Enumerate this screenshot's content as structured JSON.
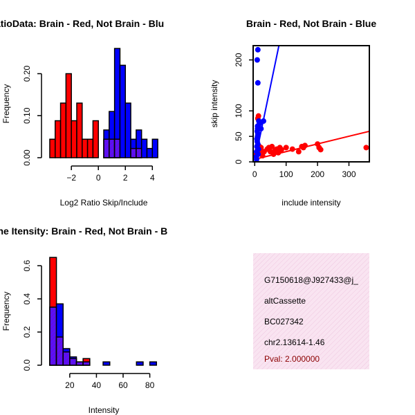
{
  "colors": {
    "red": "#ff0000",
    "blue": "#0000ff",
    "overlap": "#a020f0",
    "info_bg": "#f7dcee",
    "pval": "#8b0000"
  },
  "chart_data": [
    {
      "type": "bar",
      "title": "RatioData: Brain - Red, Not Brain - Blu",
      "xlabel": "Log2 Ratio Skip/Include",
      "ylabel": "Frequency",
      "xlim": [
        -3.7,
        4.6
      ],
      "ylim": [
        0,
        0.27
      ],
      "xticks": [
        -2,
        0,
        2,
        4
      ],
      "xtick_labels": [
        "−2",
        "0",
        "2",
        "4"
      ],
      "yticks": [
        0.0,
        0.1,
        0.2
      ],
      "ytick_labels": [
        "0.00",
        "0.10",
        "0.20"
      ],
      "bin_edges": [
        -3.6,
        -3.2,
        -2.8,
        -2.4,
        -2.0,
        -1.6,
        -1.2,
        -0.8,
        -0.4,
        0.0,
        0.4,
        0.8,
        1.2,
        1.6,
        2.0,
        2.4,
        2.8,
        3.2,
        3.6,
        4.0,
        4.4
      ],
      "series": [
        {
          "name": "Brain",
          "color": "red",
          "values": [
            0.044,
            0.088,
            0.13,
            0.2,
            0.088,
            0.13,
            0.044,
            0.044,
            0.088,
            0,
            0.044,
            0.044,
            0.044,
            0,
            0,
            0.022,
            0.022,
            0,
            0,
            0
          ]
        },
        {
          "name": "Not Brain",
          "color": "blue",
          "values": [
            0,
            0,
            0,
            0,
            0,
            0,
            0,
            0,
            0,
            0,
            0.066,
            0.11,
            0.26,
            0.22,
            0.13,
            0.044,
            0.066,
            0.044,
            0.022,
            0.044
          ]
        }
      ]
    },
    {
      "type": "scatter",
      "title": "Brain - Red, Not Brain - Blue",
      "xlabel": "include intensity",
      "ylabel": "skip intensity",
      "xlim": [
        -5,
        365
      ],
      "ylim": [
        0,
        228
      ],
      "xticks": [
        0,
        100,
        200,
        300
      ],
      "yticks": [
        0,
        50,
        100,
        200
      ],
      "series": [
        {
          "name": "Brain",
          "color": "red",
          "points": [
            [
              5,
              15
            ],
            [
              8,
              20
            ],
            [
              10,
              25
            ],
            [
              12,
              18
            ],
            [
              15,
              30
            ],
            [
              18,
              22
            ],
            [
              20,
              28
            ],
            [
              25,
              12
            ],
            [
              30,
              20
            ],
            [
              40,
              25
            ],
            [
              45,
              28
            ],
            [
              50,
              20
            ],
            [
              55,
              30
            ],
            [
              60,
              15
            ],
            [
              65,
              22
            ],
            [
              70,
              25
            ],
            [
              75,
              18
            ],
            [
              80,
              28
            ],
            [
              85,
              24
            ],
            [
              100,
              28
            ],
            [
              120,
              25
            ],
            [
              140,
              20
            ],
            [
              150,
              30
            ],
            [
              155,
              28
            ],
            [
              160,
              32
            ],
            [
              200,
              35
            ],
            [
              205,
              28
            ],
            [
              210,
              24
            ],
            [
              355,
              28
            ],
            [
              10,
              85
            ],
            [
              12,
              90
            ]
          ],
          "line": [
            [
              0,
              5
            ],
            [
              365,
              60
            ]
          ]
        },
        {
          "name": "Not Brain",
          "color": "blue",
          "points": [
            [
              5,
              10
            ],
            [
              6,
              20
            ],
            [
              7,
              30
            ],
            [
              8,
              40
            ],
            [
              9,
              50
            ],
            [
              10,
              55
            ],
            [
              8,
              60
            ],
            [
              9,
              65
            ],
            [
              7,
              45
            ],
            [
              10,
              35
            ],
            [
              12,
              25
            ],
            [
              11,
              15
            ],
            [
              6,
              5
            ],
            [
              9,
              70
            ],
            [
              13,
              80
            ],
            [
              15,
              75
            ],
            [
              20,
              65
            ],
            [
              28,
              80
            ],
            [
              10,
              155
            ],
            [
              8,
              200
            ],
            [
              10,
              220
            ]
          ],
          "line": [
            [
              0,
              0
            ],
            [
              77,
              228
            ]
          ]
        }
      ]
    },
    {
      "type": "bar",
      "title": "Gene Itensity: Brain - Red, Not Brain - B",
      "xlabel": "Intensity",
      "ylabel": "Frequency",
      "xlim": [
        4,
        88
      ],
      "ylim": [
        0,
        0.68
      ],
      "xticks": [
        20,
        40,
        60,
        80
      ],
      "yticks": [
        0.0,
        0.2,
        0.4,
        0.6
      ],
      "ytick_labels": [
        "0.0",
        "0.2",
        "0.4",
        "0.6"
      ],
      "bin_edges": [
        5,
        10,
        15,
        20,
        25,
        30,
        35,
        40,
        45,
        50,
        55,
        60,
        65,
        70,
        75,
        80,
        85,
        90
      ],
      "series": [
        {
          "name": "Brain",
          "color": "red",
          "values": [
            0.65,
            0.17,
            0.08,
            0.04,
            0.02,
            0.04,
            0,
            0,
            0,
            0,
            0,
            0,
            0,
            0,
            0,
            0,
            0
          ]
        },
        {
          "name": "Not Brain",
          "color": "blue",
          "values": [
            0.35,
            0.37,
            0.1,
            0.05,
            0.02,
            0.02,
            0,
            0,
            0.02,
            0,
            0,
            0,
            0,
            0.02,
            0,
            0.02,
            0
          ]
        }
      ]
    }
  ],
  "info_panel": {
    "line1": "G7150618@J927433@j_",
    "line2": "altCassette",
    "line3": "BC027342",
    "line4": "chr2.13614-1.46",
    "pval": "Pval: 2.000000"
  }
}
